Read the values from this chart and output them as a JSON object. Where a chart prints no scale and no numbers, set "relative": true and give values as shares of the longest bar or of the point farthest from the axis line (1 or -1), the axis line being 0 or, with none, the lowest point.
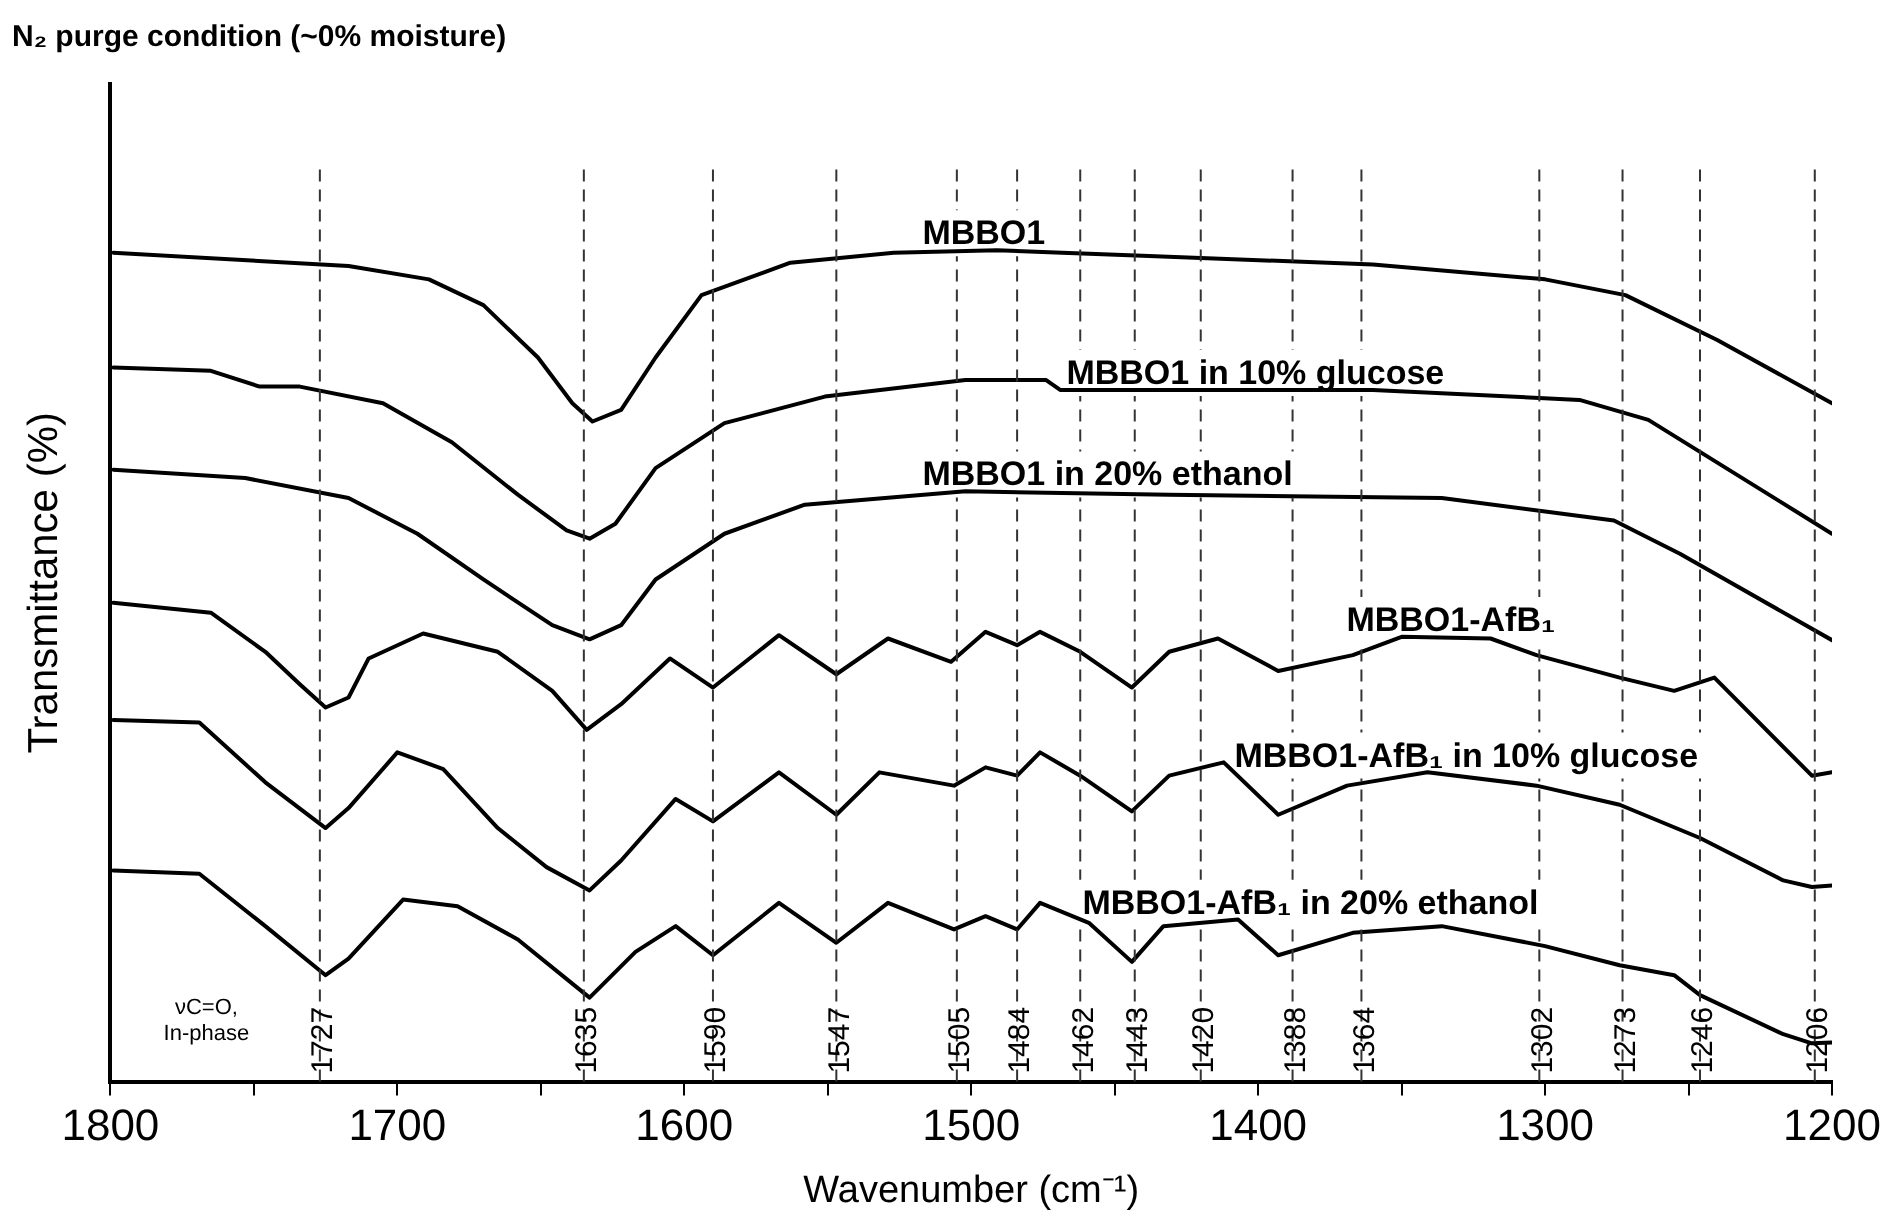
{
  "chart_data": {
    "type": "line",
    "title": "N₂ purge condition (~0% moisture)",
    "xlabel": "Wavenumber (cm⁻¹)",
    "ylabel": "Transmittance (%)",
    "relative": true,
    "legend": false,
    "grid": false,
    "marker": "none",
    "line_style": "solid",
    "xlim": [
      1800,
      1200
    ],
    "xticks": [
      1800,
      {
        "value": 1750,
        "label": null
      },
      1700,
      {
        "value": 1650,
        "label": null
      },
      1600,
      {
        "value": 1550,
        "label": null
      },
      1500,
      {
        "value": 1450,
        "label": null
      },
      1400,
      {
        "value": 1350,
        "label": null
      },
      1300,
      {
        "value": 1250,
        "label": null
      },
      1200
    ],
    "series": [
      {
        "name": "MBBO1",
        "color": "#000000",
        "x": [
          1799,
          1717,
          1689,
          1670,
          1651,
          1639,
          1632,
          1622,
          1610,
          1594,
          1563,
          1527,
          1491,
          1438,
          1360,
          1300,
          1272,
          1240,
          1200
        ],
        "values": [
          0.997,
          0.981,
          0.965,
          0.934,
          0.871,
          0.816,
          0.794,
          0.808,
          0.871,
          0.946,
          0.985,
          0.997,
          1.0,
          0.993,
          0.983,
          0.965,
          0.946,
          0.892,
          0.816
        ]
      },
      {
        "name": "MBBO1 in 10% glucose",
        "color": "#000000",
        "x": [
          1799,
          1765,
          1748,
          1734,
          1705,
          1681,
          1658,
          1641,
          1633,
          1624,
          1610,
          1586,
          1551,
          1502,
          1474,
          1469,
          1360,
          1288,
          1264,
          1200
        ],
        "values": [
          0.859,
          0.855,
          0.836,
          0.836,
          0.816,
          0.769,
          0.706,
          0.663,
          0.653,
          0.671,
          0.738,
          0.792,
          0.824,
          0.844,
          0.844,
          0.832,
          0.832,
          0.82,
          0.796,
          0.659
        ]
      },
      {
        "name": "MBBO1 in 20% ethanol",
        "color": "#000000",
        "x": [
          1799,
          1753,
          1717,
          1693,
          1670,
          1646,
          1633,
          1622,
          1610,
          1586,
          1558,
          1502,
          1431,
          1336,
          1276,
          1253,
          1200
        ],
        "values": [
          0.736,
          0.726,
          0.702,
          0.659,
          0.604,
          0.549,
          0.532,
          0.549,
          0.604,
          0.659,
          0.694,
          0.71,
          0.706,
          0.702,
          0.675,
          0.635,
          0.531
        ]
      },
      {
        "name": "MBBO1-AfB₁",
        "color": "#000000",
        "x": [
          1799,
          1765,
          1746,
          1734,
          1725,
          1717,
          1710,
          1691,
          1665,
          1646,
          1634,
          1622,
          1605,
          1590,
          1567,
          1547,
          1529,
          1507,
          1495,
          1484,
          1476,
          1462,
          1444,
          1431,
          1414,
          1393,
          1367,
          1350,
          1319,
          1303,
          1274,
          1255,
          1241,
          1207,
          1200
        ],
        "values": [
          0.576,
          0.564,
          0.517,
          0.478,
          0.45,
          0.462,
          0.509,
          0.539,
          0.517,
          0.47,
          0.423,
          0.454,
          0.509,
          0.474,
          0.537,
          0.49,
          0.533,
          0.505,
          0.541,
          0.525,
          0.541,
          0.517,
          0.474,
          0.517,
          0.533,
          0.494,
          0.513,
          0.535,
          0.533,
          0.513,
          0.486,
          0.47,
          0.486,
          0.368,
          0.372
        ]
      },
      {
        "name": "MBBO1-AfB₁ in 10% glucose",
        "color": "#000000",
        "x": [
          1799,
          1769,
          1746,
          1725,
          1717,
          1700,
          1684,
          1665,
          1648,
          1633,
          1622,
          1603,
          1590,
          1567,
          1547,
          1532,
          1506,
          1495,
          1484,
          1476,
          1462,
          1444,
          1431,
          1412,
          1393,
          1369,
          1341,
          1303,
          1274,
          1246,
          1217,
          1207,
          1200
        ],
        "values": [
          0.435,
          0.432,
          0.36,
          0.305,
          0.329,
          0.396,
          0.376,
          0.305,
          0.258,
          0.23,
          0.266,
          0.34,
          0.313,
          0.372,
          0.321,
          0.372,
          0.356,
          0.378,
          0.368,
          0.396,
          0.368,
          0.325,
          0.368,
          0.384,
          0.321,
          0.356,
          0.372,
          0.356,
          0.333,
          0.293,
          0.242,
          0.234,
          0.236
        ]
      },
      {
        "name": "MBBO1-AfB₁ in 20% ethanol",
        "color": "#000000",
        "x": [
          1799,
          1769,
          1746,
          1725,
          1717,
          1698,
          1679,
          1658,
          1633,
          1617,
          1603,
          1590,
          1567,
          1547,
          1529,
          1506,
          1495,
          1484,
          1476,
          1459,
          1444,
          1433,
          1407,
          1393,
          1367,
          1336,
          1300,
          1274,
          1255,
          1246,
          1217,
          1207,
          1200
        ],
        "values": [
          0.254,
          0.25,
          0.187,
          0.128,
          0.148,
          0.219,
          0.211,
          0.171,
          0.101,
          0.156,
          0.187,
          0.152,
          0.215,
          0.167,
          0.215,
          0.183,
          0.199,
          0.183,
          0.215,
          0.191,
          0.144,
          0.187,
          0.195,
          0.152,
          0.179,
          0.187,
          0.163,
          0.14,
          0.128,
          0.104,
          0.057,
          0.046,
          0.047
        ]
      }
    ],
    "ref_lines": [
      {
        "axis": "x",
        "value": 1727,
        "label": "1727",
        "line_style": "dashed"
      },
      {
        "axis": "x",
        "value": 1635,
        "label": "1635",
        "line_style": "dashed"
      },
      {
        "axis": "x",
        "value": 1590,
        "label": "1590",
        "line_style": "dashed"
      },
      {
        "axis": "x",
        "value": 1547,
        "label": "1547",
        "line_style": "dashed"
      },
      {
        "axis": "x",
        "value": 1505,
        "label": "1505",
        "line_style": "dashed"
      },
      {
        "axis": "x",
        "value": 1484,
        "label": "1484",
        "line_style": "dashed"
      },
      {
        "axis": "x",
        "value": 1462,
        "label": "1462",
        "line_style": "dashed"
      },
      {
        "axis": "x",
        "value": 1443,
        "label": "1443",
        "line_style": "dashed"
      },
      {
        "axis": "x",
        "value": 1420,
        "label": "1420",
        "line_style": "dashed"
      },
      {
        "axis": "x",
        "value": 1388,
        "label": "1388",
        "line_style": "dashed"
      },
      {
        "axis": "x",
        "value": 1364,
        "label": "1364",
        "line_style": "dashed"
      },
      {
        "axis": "x",
        "value": 1302,
        "label": "1302",
        "line_style": "dashed"
      },
      {
        "axis": "x",
        "value": 1273,
        "label": "1273",
        "line_style": "dashed"
      },
      {
        "axis": "x",
        "value": 1246,
        "label": "1246",
        "line_style": "dashed"
      },
      {
        "axis": "x",
        "value": 1206,
        "label": "1206",
        "line_style": "dashed"
      }
    ],
    "annotations": [
      "νC=O, In-phase"
    ]
  }
}
